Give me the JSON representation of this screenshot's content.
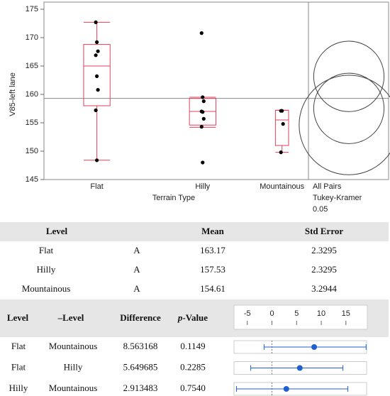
{
  "chart_data": {
    "type": "box",
    "y_label": "V85-left lane",
    "x_label": "Terrain Type",
    "categories": [
      "Flat",
      "Hilly",
      "Mountainous"
    ],
    "boxes": [
      {
        "min": 148.4,
        "q1": 158.0,
        "median": 165.0,
        "q3": 168.8,
        "max": 172.7
      },
      {
        "min": 154.2,
        "q1": 154.6,
        "median": 157.0,
        "q3": 159.3,
        "max": 159.5
      },
      {
        "min": 149.8,
        "q1": 151.0,
        "median": 155.5,
        "q3": 157.2,
        "max": 157.2
      }
    ],
    "points": [
      [
        172.7,
        169.2,
        167.6,
        166.9,
        163.2,
        160.8,
        157.2,
        148.4
      ],
      [
        170.8,
        159.5,
        158.8,
        157.0,
        156.9,
        155.7,
        154.3,
        148.0
      ],
      [
        157.1,
        157.1,
        154.8,
        149.8
      ]
    ],
    "color": "#e0405a",
    "point_color": "#000000",
    "ylim": [
      145,
      175
    ],
    "yticks": [
      145,
      150,
      155,
      160,
      165,
      170,
      175
    ],
    "mean_line": 159.3,
    "circles": [
      {
        "center": 163.17,
        "radius": 6.2
      },
      {
        "center": 157.53,
        "radius": 6.2
      },
      {
        "center": 154.61,
        "radius": 8.77
      }
    ],
    "circle_label": [
      "All Pairs",
      "Tukey-Kramer",
      "0.05"
    ]
  },
  "means_table": {
    "header": [
      "Level",
      "Mean",
      "Std Error"
    ],
    "rows": [
      [
        "Flat",
        "A",
        "163.17",
        "2.3295"
      ],
      [
        "Hilly",
        "A",
        "157.53",
        "2.3295"
      ],
      [
        "Mountainous",
        "A",
        "154.61",
        "3.2944"
      ]
    ]
  },
  "diff_table": {
    "header": [
      "Level",
      "–Level",
      "Difference",
      "p-Value"
    ],
    "rows": [
      [
        "Flat",
        "Mountainous",
        8.563168,
        "0.1149"
      ],
      [
        "Flat",
        "Hilly",
        5.649685,
        "0.2285"
      ],
      [
        "Hilly",
        "Mountainous",
        2.913483,
        "0.7540"
      ]
    ],
    "ci_lower": [
      -1.6,
      -4.3,
      -7.2
    ],
    "ci_upper": [
      19.1,
      14.4,
      15.4
    ],
    "xlim": [
      -7.7,
      19.2
    ],
    "xticks": [
      -5,
      0,
      5,
      10,
      15
    ],
    "color": "#1f5fd0"
  }
}
